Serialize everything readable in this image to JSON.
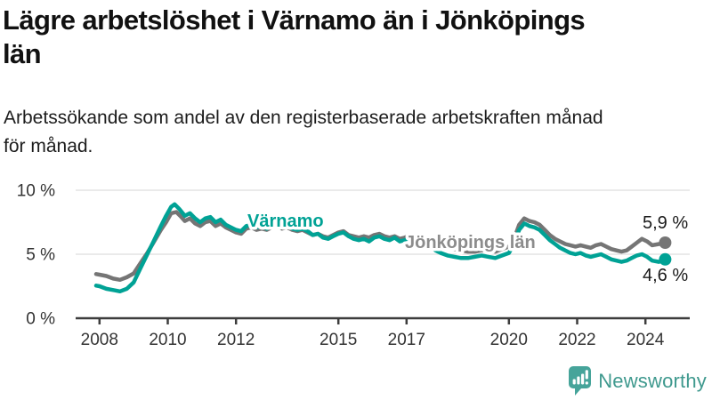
{
  "header": {
    "title": "Lägre arbetslöshet i Värnamo än i Jönköpings län",
    "title_lines": [
      "Lägre arbetslöshet i Värnamo än i Jönköpings",
      "län"
    ],
    "subtitle": "Arbetssökande som andel av den registerbaserade arbetskraften månad för månad.",
    "subtitle_lines": [
      "Arbetssökande som andel av den registerbaserade arbetskraften månad",
      "för månad."
    ]
  },
  "footer": {
    "logo_text": "Newsworthy",
    "logo_icon": "bar-chart-speech-bubble-icon",
    "logo_icon_color": "#46a49a",
    "logo_text_color": "#3f998e"
  },
  "colors": {
    "varnamo_line": "#00a295",
    "jonkoping_line": "#757575",
    "jonkoping_label": "#8c8c8c",
    "value_label": "#1a1a1a",
    "axis": "#3d3d3d",
    "grid": "#e4e4e4",
    "tick_text": "#333333"
  },
  "chart_data": {
    "type": "line",
    "title": "Lägre arbetslöshet i Värnamo än i Jönköpings län",
    "xlabel": "",
    "ylabel": "Arbetssökande som andel av den registerbaserade arbetskraften",
    "xlim": [
      2007.3,
      2025.3
    ],
    "ylim": [
      0,
      10
    ],
    "grid": "horizontal",
    "legend_position": "inline-labels",
    "x_ticks": [
      2008,
      2010,
      2012,
      2015,
      2017,
      2020,
      2022,
      2024
    ],
    "y_ticks": [
      {
        "v": 0,
        "label": "0 %"
      },
      {
        "v": 5,
        "label": "5 %"
      },
      {
        "v": 10,
        "label": "10 %"
      }
    ],
    "series": [
      {
        "name": "Jönköpings län",
        "color": "#757575",
        "label_color": "#8c8c8c",
        "end_value": 5.9,
        "end_label": "5,9 %",
        "points": [
          [
            2007.9,
            3.45
          ],
          [
            2008.0,
            3.4
          ],
          [
            2008.2,
            3.3
          ],
          [
            2008.4,
            3.1
          ],
          [
            2008.6,
            3.0
          ],
          [
            2008.8,
            3.2
          ],
          [
            2009.0,
            3.5
          ],
          [
            2009.2,
            4.3
          ],
          [
            2009.4,
            5.1
          ],
          [
            2009.6,
            6.0
          ],
          [
            2009.8,
            6.9
          ],
          [
            2009.95,
            7.5
          ],
          [
            2010.1,
            8.2
          ],
          [
            2010.25,
            8.3
          ],
          [
            2010.4,
            7.9
          ],
          [
            2010.5,
            7.6
          ],
          [
            2010.65,
            7.8
          ],
          [
            2010.8,
            7.4
          ],
          [
            2010.95,
            7.2
          ],
          [
            2011.1,
            7.5
          ],
          [
            2011.25,
            7.6
          ],
          [
            2011.4,
            7.2
          ],
          [
            2011.55,
            7.4
          ],
          [
            2011.7,
            7.1
          ],
          [
            2011.85,
            6.9
          ],
          [
            2012.0,
            6.7
          ],
          [
            2012.15,
            6.6
          ],
          [
            2012.3,
            7.0
          ],
          [
            2012.45,
            7.1
          ],
          [
            2012.6,
            6.9
          ],
          [
            2012.75,
            7.0
          ],
          [
            2012.9,
            6.9
          ],
          [
            2013.05,
            7.1
          ],
          [
            2013.2,
            7.2
          ],
          [
            2013.35,
            7.0
          ],
          [
            2013.5,
            7.1
          ],
          [
            2013.65,
            6.9
          ],
          [
            2013.8,
            6.8
          ],
          [
            2013.95,
            6.9
          ],
          [
            2014.1,
            6.7
          ],
          [
            2014.25,
            6.5
          ],
          [
            2014.4,
            6.6
          ],
          [
            2014.55,
            6.4
          ],
          [
            2014.7,
            6.3
          ],
          [
            2014.85,
            6.5
          ],
          [
            2015.0,
            6.7
          ],
          [
            2015.15,
            6.8
          ],
          [
            2015.3,
            6.5
          ],
          [
            2015.45,
            6.4
          ],
          [
            2015.6,
            6.3
          ],
          [
            2015.75,
            6.4
          ],
          [
            2015.9,
            6.3
          ],
          [
            2016.05,
            6.5
          ],
          [
            2016.2,
            6.6
          ],
          [
            2016.35,
            6.4
          ],
          [
            2016.5,
            6.3
          ],
          [
            2016.65,
            6.4
          ],
          [
            2016.8,
            6.2
          ],
          [
            2016.95,
            6.3
          ],
          [
            2017.1,
            6.5
          ],
          [
            2017.25,
            6.4
          ],
          [
            2017.4,
            6.2
          ],
          [
            2017.55,
            6.1
          ],
          [
            2017.7,
            6.0
          ],
          [
            2017.85,
            5.8
          ],
          [
            2018.0,
            5.7
          ],
          [
            2018.2,
            5.5
          ],
          [
            2018.4,
            5.4
          ],
          [
            2018.6,
            5.3
          ],
          [
            2018.8,
            5.2
          ],
          [
            2019.0,
            5.2
          ],
          [
            2019.2,
            5.3
          ],
          [
            2019.4,
            5.3
          ],
          [
            2019.6,
            5.2
          ],
          [
            2019.8,
            5.4
          ],
          [
            2020.0,
            5.6
          ],
          [
            2020.15,
            6.2
          ],
          [
            2020.3,
            7.3
          ],
          [
            2020.45,
            7.8
          ],
          [
            2020.6,
            7.6
          ],
          [
            2020.75,
            7.5
          ],
          [
            2020.9,
            7.3
          ],
          [
            2021.05,
            6.9
          ],
          [
            2021.2,
            6.5
          ],
          [
            2021.35,
            6.2
          ],
          [
            2021.5,
            6.0
          ],
          [
            2021.65,
            5.8
          ],
          [
            2021.8,
            5.7
          ],
          [
            2021.95,
            5.6
          ],
          [
            2022.1,
            5.7
          ],
          [
            2022.25,
            5.6
          ],
          [
            2022.4,
            5.5
          ],
          [
            2022.55,
            5.7
          ],
          [
            2022.7,
            5.8
          ],
          [
            2022.85,
            5.6
          ],
          [
            2023.0,
            5.4
          ],
          [
            2023.15,
            5.3
          ],
          [
            2023.3,
            5.2
          ],
          [
            2023.45,
            5.3
          ],
          [
            2023.6,
            5.6
          ],
          [
            2023.75,
            5.9
          ],
          [
            2023.9,
            6.2
          ],
          [
            2024.05,
            6.0
          ],
          [
            2024.2,
            5.7
          ],
          [
            2024.4,
            5.8
          ],
          [
            2024.58,
            5.9
          ]
        ]
      },
      {
        "name": "Värnamo",
        "color": "#00a295",
        "label_color": "#00a295",
        "end_value": 4.6,
        "end_label": "4,6 %",
        "points": [
          [
            2007.9,
            2.55
          ],
          [
            2008.0,
            2.5
          ],
          [
            2008.2,
            2.3
          ],
          [
            2008.4,
            2.2
          ],
          [
            2008.6,
            2.1
          ],
          [
            2008.8,
            2.3
          ],
          [
            2009.0,
            2.8
          ],
          [
            2009.2,
            3.9
          ],
          [
            2009.4,
            5.0
          ],
          [
            2009.6,
            6.1
          ],
          [
            2009.8,
            7.2
          ],
          [
            2009.95,
            8.0
          ],
          [
            2010.1,
            8.7
          ],
          [
            2010.2,
            8.9
          ],
          [
            2010.35,
            8.5
          ],
          [
            2010.5,
            8.0
          ],
          [
            2010.65,
            8.2
          ],
          [
            2010.8,
            7.8
          ],
          [
            2010.95,
            7.5
          ],
          [
            2011.1,
            7.8
          ],
          [
            2011.25,
            7.9
          ],
          [
            2011.4,
            7.5
          ],
          [
            2011.55,
            7.7
          ],
          [
            2011.7,
            7.3
          ],
          [
            2011.85,
            7.1
          ],
          [
            2012.0,
            6.9
          ],
          [
            2012.15,
            6.8
          ],
          [
            2012.3,
            7.2
          ],
          [
            2012.45,
            7.3
          ],
          [
            2012.6,
            7.1
          ],
          [
            2012.75,
            7.2
          ],
          [
            2012.9,
            7.0
          ],
          [
            2013.05,
            7.2
          ],
          [
            2013.2,
            7.3
          ],
          [
            2013.35,
            7.1
          ],
          [
            2013.5,
            7.2
          ],
          [
            2013.65,
            7.0
          ],
          [
            2013.8,
            6.9
          ],
          [
            2013.95,
            7.0
          ],
          [
            2014.1,
            6.8
          ],
          [
            2014.25,
            6.5
          ],
          [
            2014.4,
            6.6
          ],
          [
            2014.55,
            6.3
          ],
          [
            2014.7,
            6.2
          ],
          [
            2014.85,
            6.4
          ],
          [
            2015.0,
            6.6
          ],
          [
            2015.15,
            6.7
          ],
          [
            2015.3,
            6.4
          ],
          [
            2015.45,
            6.2
          ],
          [
            2015.6,
            6.1
          ],
          [
            2015.75,
            6.2
          ],
          [
            2015.9,
            6.0
          ],
          [
            2016.05,
            6.3
          ],
          [
            2016.2,
            6.4
          ],
          [
            2016.35,
            6.2
          ],
          [
            2016.5,
            6.1
          ],
          [
            2016.65,
            6.3
          ],
          [
            2016.8,
            6.0
          ],
          [
            2016.95,
            6.1
          ],
          [
            2017.1,
            6.3
          ],
          [
            2017.25,
            6.2
          ],
          [
            2017.4,
            6.0
          ],
          [
            2017.55,
            5.8
          ],
          [
            2017.7,
            5.6
          ],
          [
            2017.85,
            5.3
          ],
          [
            2018.0,
            5.1
          ],
          [
            2018.2,
            4.9
          ],
          [
            2018.4,
            4.8
          ],
          [
            2018.6,
            4.7
          ],
          [
            2018.8,
            4.7
          ],
          [
            2019.0,
            4.8
          ],
          [
            2019.2,
            4.9
          ],
          [
            2019.4,
            4.8
          ],
          [
            2019.6,
            4.7
          ],
          [
            2019.8,
            4.9
          ],
          [
            2020.0,
            5.1
          ],
          [
            2020.15,
            5.8
          ],
          [
            2020.3,
            6.9
          ],
          [
            2020.45,
            7.4
          ],
          [
            2020.6,
            7.2
          ],
          [
            2020.75,
            7.1
          ],
          [
            2020.9,
            6.9
          ],
          [
            2021.05,
            6.5
          ],
          [
            2021.2,
            6.1
          ],
          [
            2021.35,
            5.8
          ],
          [
            2021.5,
            5.5
          ],
          [
            2021.65,
            5.3
          ],
          [
            2021.8,
            5.1
          ],
          [
            2021.95,
            5.0
          ],
          [
            2022.1,
            5.1
          ],
          [
            2022.25,
            4.9
          ],
          [
            2022.4,
            4.8
          ],
          [
            2022.55,
            4.9
          ],
          [
            2022.7,
            5.0
          ],
          [
            2022.85,
            4.8
          ],
          [
            2023.0,
            4.6
          ],
          [
            2023.15,
            4.5
          ],
          [
            2023.3,
            4.4
          ],
          [
            2023.45,
            4.5
          ],
          [
            2023.6,
            4.7
          ],
          [
            2023.75,
            4.9
          ],
          [
            2023.9,
            5.0
          ],
          [
            2024.05,
            4.8
          ],
          [
            2024.2,
            4.5
          ],
          [
            2024.4,
            4.4
          ],
          [
            2024.58,
            4.6
          ]
        ]
      }
    ]
  }
}
